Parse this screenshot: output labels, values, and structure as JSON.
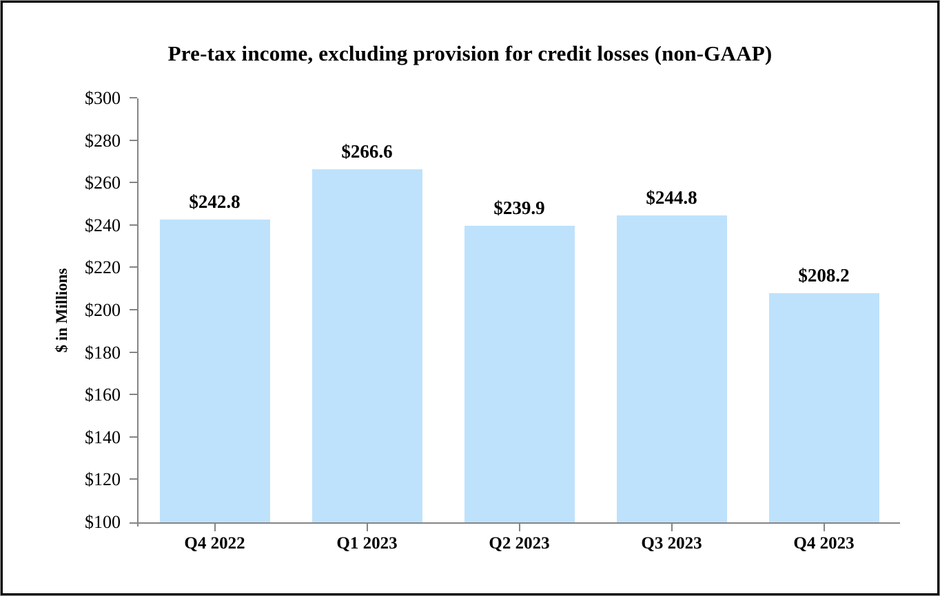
{
  "chart_data": {
    "type": "bar",
    "title": "Pre-tax income, excluding provision for credit losses (non-GAAP)",
    "ylabel": "$ in Millions",
    "xlabel": "",
    "categories": [
      "Q4 2022",
      "Q1 2023",
      "Q2 2023",
      "Q3 2023",
      "Q4 2023"
    ],
    "values": [
      242.8,
      266.6,
      239.9,
      244.8,
      208.2
    ],
    "data_labels": [
      "$242.8",
      "$266.6",
      "$239.9",
      "$244.8",
      "$208.2"
    ],
    "ylim": [
      100,
      300
    ],
    "ytick_step": 20,
    "ytick_labels": [
      "$100",
      "$120",
      "$140",
      "$160",
      "$180",
      "$200",
      "$220",
      "$240",
      "$260",
      "$280",
      "$300"
    ],
    "grid": false,
    "legend_position": "none",
    "bar_color": "#BEE2FC",
    "axis_color": "#848484",
    "text_color": "#000000"
  }
}
